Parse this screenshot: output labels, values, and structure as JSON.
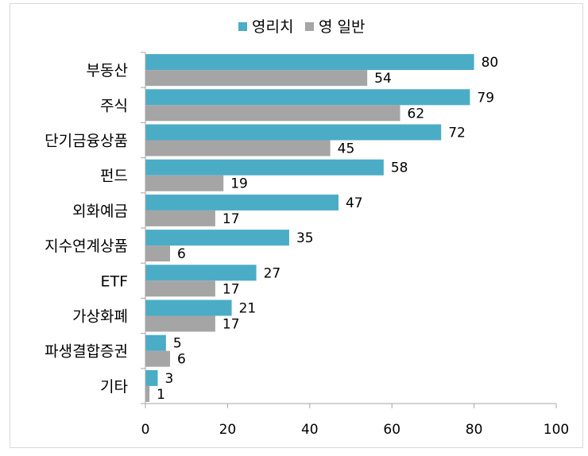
{
  "chart_data": {
    "type": "bar",
    "orientation": "horizontal",
    "categories": [
      "부동산",
      "주식",
      "단기금융상품",
      "펀드",
      "외화예금",
      "지수연계상품",
      "ETF",
      "가상화폐",
      "파생결합증권",
      "기타"
    ],
    "series": [
      {
        "name": "영리치",
        "color": "#4bacc6",
        "values": [
          80,
          79,
          72,
          58,
          47,
          35,
          27,
          21,
          5,
          3
        ]
      },
      {
        "name": "영 일반",
        "color": "#a5a5a5",
        "values": [
          54,
          62,
          45,
          19,
          17,
          6,
          17,
          17,
          6,
          1
        ]
      }
    ],
    "xlim": [
      0,
      100
    ],
    "xticks": [
      0,
      20,
      40,
      60,
      80,
      100
    ],
    "grid": false,
    "legend": "top-center"
  }
}
